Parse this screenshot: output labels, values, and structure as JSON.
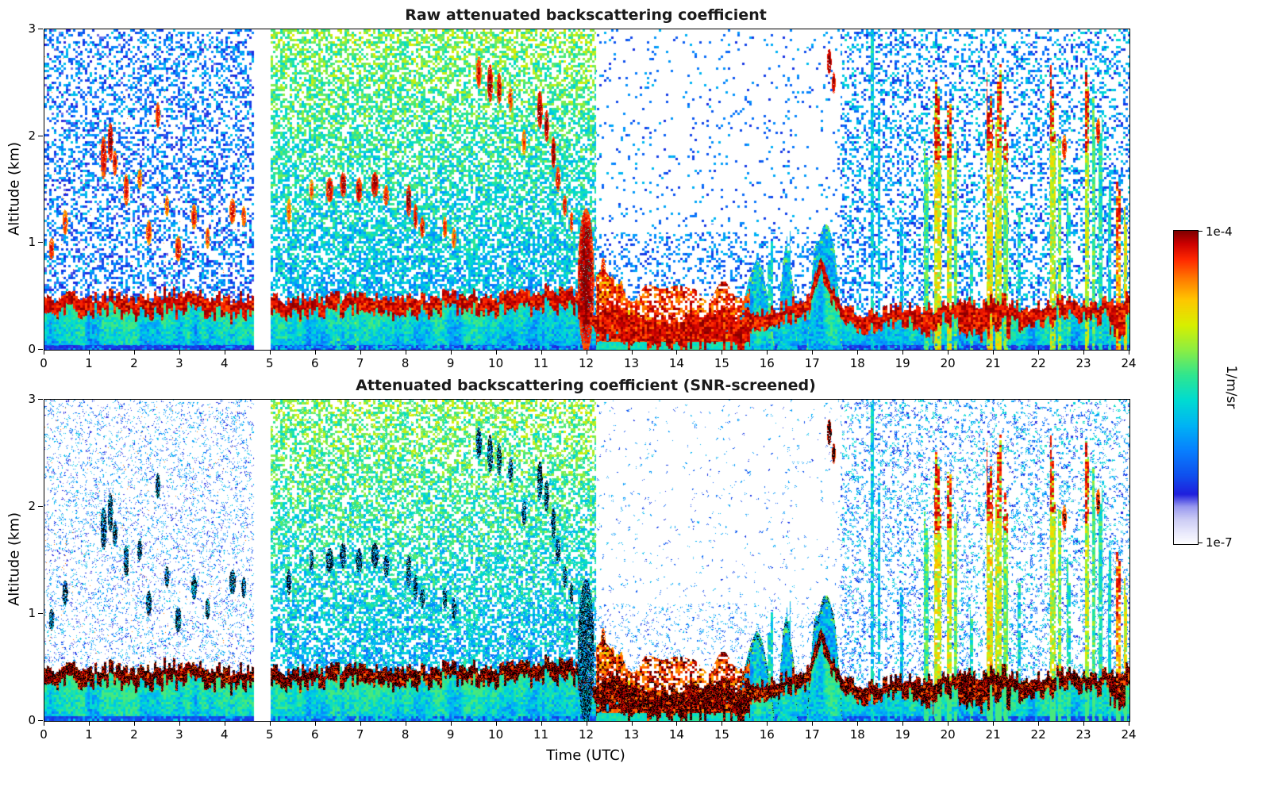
{
  "figure": {
    "title_top": "Raw attenuated backscattering coefficient",
    "title_bottom": "Attenuated backscattering coefficient (SNR-screened)",
    "xlabel": "Time (UTC)",
    "ylabel": "Altitude (km)",
    "colorbar": {
      "max_label": "1e-4",
      "min_label": "1e-7",
      "unit": "1/m/sr"
    }
  },
  "chart_data": {
    "type": "heatmap",
    "panels": [
      {
        "title": "Raw attenuated backscattering coefficient",
        "screened": false
      },
      {
        "title": "Attenuated backscattering coefficient (SNR-screened)",
        "screened": true
      }
    ],
    "xlabel": "Time (UTC)",
    "ylabel": "Altitude (km)",
    "x": {
      "min": 0,
      "max": 24,
      "ticks": [
        0,
        1,
        2,
        3,
        4,
        5,
        6,
        7,
        8,
        9,
        10,
        11,
        12,
        13,
        14,
        15,
        16,
        17,
        18,
        19,
        20,
        21,
        22,
        23,
        24
      ]
    },
    "y": {
      "min": 0,
      "max": 3,
      "ticks": [
        0,
        1,
        2,
        3
      ]
    },
    "colorbar": {
      "scale": "log",
      "min": 1e-07,
      "max": 0.0001,
      "unit": "1/m/sr",
      "min_label": "1e-7",
      "max_label": "1e-4"
    },
    "colormap_stops": [
      [
        0.0,
        "#ffffff"
      ],
      [
        0.04,
        "#e8e8fc"
      ],
      [
        0.08,
        "#ccccf5"
      ],
      [
        0.12,
        "#9a9af0"
      ],
      [
        0.16,
        "#2020dd"
      ],
      [
        0.22,
        "#1050ee"
      ],
      [
        0.3,
        "#0880ff"
      ],
      [
        0.38,
        "#00b4f5"
      ],
      [
        0.46,
        "#00dcd2"
      ],
      [
        0.54,
        "#30e690"
      ],
      [
        0.62,
        "#8cee44"
      ],
      [
        0.7,
        "#d8f000"
      ],
      [
        0.78,
        "#ffc800"
      ],
      [
        0.85,
        "#ff7800"
      ],
      [
        0.91,
        "#ff2800"
      ],
      [
        0.96,
        "#cc0000"
      ],
      [
        1.0,
        "#800000"
      ]
    ],
    "features": {
      "gap": [
        4.63,
        5.0
      ],
      "rain": [
        12.2,
        15.6
      ],
      "heavy_intervals": [
        [
          12.2,
          15.6
        ],
        [
          19.2,
          19.65
        ],
        [
          20.2,
          21.35
        ],
        [
          23.55,
          23.95
        ]
      ],
      "layer_keyframes": [
        [
          0,
          0.52
        ],
        [
          1,
          0.5
        ],
        [
          2,
          0.52
        ],
        [
          3,
          0.5
        ],
        [
          4,
          0.52
        ],
        [
          4.6,
          0.5
        ],
        [
          5,
          0.48
        ],
        [
          6,
          0.5
        ],
        [
          7,
          0.52
        ],
        [
          8,
          0.5
        ],
        [
          9,
          0.52
        ],
        [
          10,
          0.5
        ],
        [
          10.8,
          0.55
        ],
        [
          11.3,
          0.6
        ],
        [
          11.8,
          0.5
        ],
        [
          12.2,
          0.38
        ],
        [
          12.6,
          0.42
        ],
        [
          13,
          0.34
        ],
        [
          13.5,
          0.3
        ],
        [
          14,
          0.34
        ],
        [
          14.5,
          0.3
        ],
        [
          15,
          0.32
        ],
        [
          15.5,
          0.34
        ],
        [
          16,
          0.38
        ],
        [
          16.5,
          0.42
        ],
        [
          16.9,
          0.5
        ],
        [
          17.15,
          0.88
        ],
        [
          17.4,
          0.6
        ],
        [
          17.7,
          0.42
        ],
        [
          18,
          0.36
        ],
        [
          18.5,
          0.34
        ],
        [
          19,
          0.38
        ],
        [
          19.5,
          0.42
        ],
        [
          20,
          0.4
        ],
        [
          20.5,
          0.46
        ],
        [
          21,
          0.5
        ],
        [
          21.3,
          0.46
        ],
        [
          21.6,
          0.4
        ],
        [
          22,
          0.42
        ],
        [
          22.5,
          0.46
        ],
        [
          23,
          0.44
        ],
        [
          23.5,
          0.42
        ],
        [
          24,
          0.5
        ]
      ],
      "band_thickness": 0.15,
      "heavy_band_thickness": 0.26,
      "mounds": [
        [
          15.3,
          16.15,
          0.85
        ],
        [
          16.2,
          16.65,
          0.95
        ],
        [
          16.85,
          17.65,
          1.3
        ]
      ],
      "clouds": [
        [
          0.15,
          0.95,
          0.06,
          0.1,
          0.9
        ],
        [
          0.45,
          1.2,
          0.06,
          0.12,
          0.88
        ],
        [
          1.3,
          1.8,
          0.07,
          0.2,
          0.92
        ],
        [
          1.45,
          1.95,
          0.06,
          0.18,
          0.95
        ],
        [
          1.55,
          1.75,
          0.05,
          0.12,
          0.9
        ],
        [
          1.8,
          1.5,
          0.06,
          0.15,
          0.9
        ],
        [
          2.1,
          1.6,
          0.05,
          0.1,
          0.85
        ],
        [
          2.3,
          1.1,
          0.06,
          0.12,
          0.88
        ],
        [
          2.5,
          2.2,
          0.05,
          0.12,
          0.9
        ],
        [
          2.7,
          1.35,
          0.05,
          0.1,
          0.85
        ],
        [
          2.95,
          0.95,
          0.07,
          0.12,
          0.9
        ],
        [
          3.3,
          1.25,
          0.06,
          0.12,
          0.88
        ],
        [
          3.6,
          1.05,
          0.05,
          0.1,
          0.85
        ],
        [
          4.15,
          1.3,
          0.07,
          0.12,
          0.9
        ],
        [
          4.4,
          1.25,
          0.05,
          0.1,
          0.88
        ],
        [
          5.4,
          1.3,
          0.05,
          0.12,
          0.85
        ],
        [
          5.9,
          1.5,
          0.05,
          0.1,
          0.85
        ],
        [
          6.3,
          1.5,
          0.08,
          0.12,
          0.92
        ],
        [
          6.6,
          1.55,
          0.07,
          0.12,
          0.95
        ],
        [
          6.95,
          1.5,
          0.07,
          0.12,
          0.92
        ],
        [
          7.3,
          1.55,
          0.08,
          0.12,
          0.95
        ],
        [
          7.55,
          1.45,
          0.06,
          0.1,
          0.9
        ],
        [
          8.05,
          1.4,
          0.06,
          0.15,
          0.95
        ],
        [
          8.2,
          1.25,
          0.05,
          0.12,
          0.92
        ],
        [
          8.35,
          1.15,
          0.05,
          0.1,
          0.9
        ],
        [
          8.85,
          1.15,
          0.05,
          0.1,
          0.88
        ],
        [
          9.05,
          1.05,
          0.05,
          0.1,
          0.85
        ],
        [
          9.6,
          2.6,
          0.06,
          0.15,
          0.9
        ],
        [
          9.85,
          2.5,
          0.06,
          0.18,
          0.95
        ],
        [
          10.05,
          2.45,
          0.05,
          0.15,
          0.92
        ],
        [
          10.3,
          2.35,
          0.05,
          0.12,
          0.88
        ],
        [
          10.6,
          1.95,
          0.05,
          0.12,
          0.85
        ],
        [
          10.95,
          2.25,
          0.06,
          0.18,
          0.95
        ],
        [
          11.1,
          2.1,
          0.05,
          0.15,
          0.95
        ],
        [
          11.25,
          1.85,
          0.05,
          0.15,
          0.95
        ],
        [
          11.35,
          1.6,
          0.05,
          0.12,
          0.92
        ],
        [
          11.5,
          1.35,
          0.05,
          0.1,
          0.9
        ],
        [
          11.65,
          1.2,
          0.04,
          0.1,
          0.88
        ],
        [
          11.97,
          0.65,
          0.18,
          0.68,
          0.96
        ],
        [
          12.35,
          0.75,
          0.05,
          0.12,
          0.9
        ],
        [
          12.55,
          0.6,
          0.05,
          0.1,
          0.88
        ],
        [
          12.75,
          0.55,
          0.05,
          0.1,
          0.85
        ],
        [
          17.35,
          2.7,
          0.05,
          0.12,
          0.98
        ],
        [
          17.45,
          2.5,
          0.04,
          0.1,
          0.95
        ],
        [
          22.55,
          1.9,
          0.05,
          0.12,
          0.9
        ],
        [
          23.3,
          2.05,
          0.05,
          0.12,
          0.9
        ]
      ],
      "streaks": [
        [
          6.5,
          0.08,
          0.55,
          0.5,
          0
        ],
        [
          6.9,
          0.1,
          0.62,
          0.5,
          0
        ],
        [
          9.3,
          0.07,
          0.55,
          0.45,
          0
        ],
        [
          5.45,
          0.05,
          1.5,
          0.24,
          2
        ],
        [
          5.62,
          0.05,
          1.3,
          0.24,
          2
        ],
        [
          5.8,
          0.05,
          1.65,
          0.26,
          2
        ],
        [
          6.05,
          0.05,
          1.4,
          0.24,
          2
        ],
        [
          6.22,
          0.04,
          1.2,
          0.24,
          2
        ],
        [
          6.7,
          0.05,
          1.5,
          0.26,
          2
        ],
        [
          7.1,
          0.05,
          1.62,
          0.24,
          2
        ],
        [
          7.5,
          0.04,
          1.35,
          0.24,
          2
        ],
        [
          7.9,
          0.05,
          1.7,
          0.26,
          2
        ],
        [
          8.5,
          0.05,
          1.5,
          0.24,
          2
        ],
        [
          9.0,
          0.04,
          1.3,
          0.24,
          2
        ],
        [
          15.75,
          0.15,
          0.8,
          0.45,
          0
        ],
        [
          16.05,
          0.12,
          0.92,
          0.45,
          0
        ],
        [
          16.45,
          0.1,
          1.05,
          0.42,
          0
        ],
        [
          18.3,
          0.07,
          2.9,
          0.44,
          0
        ],
        [
          18.45,
          0.06,
          2.5,
          0.42,
          0
        ],
        [
          18.95,
          0.06,
          1.4,
          0.4,
          0
        ],
        [
          19.5,
          0.1,
          1.9,
          0.55,
          0
        ],
        [
          19.75,
          0.16,
          2.2,
          0.7,
          1
        ],
        [
          20.0,
          0.1,
          2.25,
          0.68,
          1
        ],
        [
          20.15,
          0.08,
          2.1,
          0.6,
          0
        ],
        [
          20.5,
          0.08,
          1.0,
          0.5,
          0
        ],
        [
          20.9,
          0.14,
          2.3,
          0.72,
          1
        ],
        [
          21.1,
          0.14,
          2.35,
          0.68,
          1
        ],
        [
          21.25,
          0.1,
          2.2,
          0.6,
          1
        ],
        [
          21.55,
          0.07,
          1.2,
          0.46,
          0
        ],
        [
          22.3,
          0.12,
          2.4,
          0.66,
          1
        ],
        [
          22.45,
          0.08,
          2.2,
          0.6,
          0
        ],
        [
          22.65,
          0.08,
          1.5,
          0.5,
          0
        ],
        [
          23.05,
          0.1,
          2.3,
          0.65,
          1
        ],
        [
          23.2,
          0.08,
          2.1,
          0.56,
          0
        ],
        [
          23.35,
          0.08,
          2.0,
          0.5,
          0
        ],
        [
          23.55,
          0.07,
          1.5,
          0.46,
          0
        ],
        [
          23.75,
          0.1,
          1.4,
          0.8,
          1
        ],
        [
          23.9,
          0.08,
          1.2,
          0.7,
          0
        ]
      ],
      "noise_regimes": [
        {
          "t0": 0,
          "t1": 4.63,
          "density": 0.45,
          "v0": 0.13,
          "v1": 0.43,
          "keep": 0.28,
          "day": false
        },
        {
          "t0": 5.0,
          "t1": 12.2,
          "density": 0.72,
          "v0": 0.2,
          "v1": 0.72,
          "keep": 0.95,
          "day": true
        },
        {
          "t0": 12.2,
          "t1": 17.6,
          "density": 0.07,
          "v0": 0.18,
          "v1": 0.4,
          "keep": 0.3,
          "day": false,
          "low": 0.28
        },
        {
          "t0": 17.6,
          "t1": 24.01,
          "density": 0.38,
          "v0": 0.16,
          "v1": 0.48,
          "keep": 0.55,
          "day": false
        }
      ]
    }
  }
}
